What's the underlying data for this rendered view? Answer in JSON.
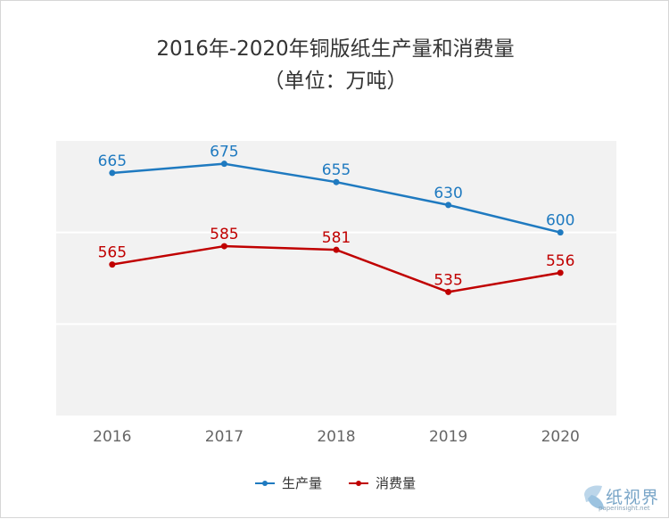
{
  "title": "2016年-2020年铜版纸生产量和消费量",
  "subtitle": "（单位：万吨）",
  "colors": {
    "production": "#1f7ac0",
    "consumption": "#c00000",
    "plot_bg": "#f2f2f2",
    "gridline": "#ffffff",
    "axis_text": "#666666"
  },
  "watermark": {
    "text": "纸视界",
    "sub": "paperinsight.net"
  },
  "chart_data": {
    "type": "line",
    "title": "2016年-2020年铜版纸生产量和消费量",
    "subtitle": "（单位：万吨）",
    "categories": [
      "2016",
      "2017",
      "2018",
      "2019",
      "2020"
    ],
    "series": [
      {
        "name": "生产量",
        "color": "#1f7ac0",
        "values": [
          665,
          675,
          655,
          630,
          600
        ]
      },
      {
        "name": "消费量",
        "color": "#c00000",
        "values": [
          565,
          585,
          581,
          535,
          556
        ]
      }
    ],
    "ylim": [
      400,
      700
    ],
    "y_grid_values": [
      600,
      500
    ],
    "grid": true,
    "legend_position": "bottom-center",
    "data_labels": true,
    "y_axis_visible": false
  }
}
